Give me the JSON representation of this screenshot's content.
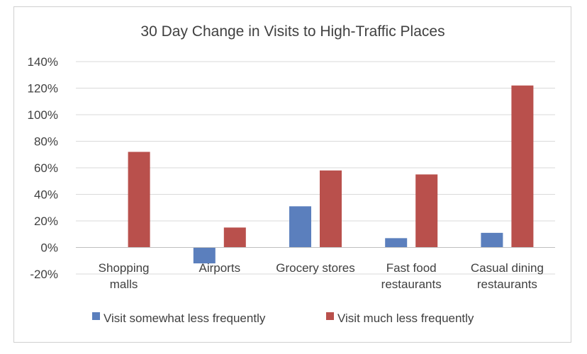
{
  "chart_data": {
    "type": "bar",
    "title": "30 Day Change in Visits to High-Traffic Places",
    "categories": [
      [
        "Shopping",
        "malls"
      ],
      [
        "Airports"
      ],
      [
        "Grocery stores"
      ],
      [
        "Fast food",
        "restaurants"
      ],
      [
        "Casual dining",
        "restaurants"
      ]
    ],
    "series": [
      {
        "name": "Visit somewhat less frequently",
        "color": "#5b7fbd",
        "values": [
          0,
          -12,
          31,
          7,
          11
        ]
      },
      {
        "name": "Visit much less frequently",
        "color": "#b9504c",
        "values": [
          72,
          15,
          58,
          55,
          122
        ]
      }
    ],
    "ylim": [
      -20,
      140
    ],
    "yticks": [
      -20,
      0,
      20,
      40,
      60,
      80,
      100,
      120,
      140
    ],
    "ytick_labels": [
      "-20%",
      "0%",
      "20%",
      "40%",
      "60%",
      "80%",
      "100%",
      "120%",
      "140%"
    ],
    "grid": true,
    "legend": "bottom"
  }
}
